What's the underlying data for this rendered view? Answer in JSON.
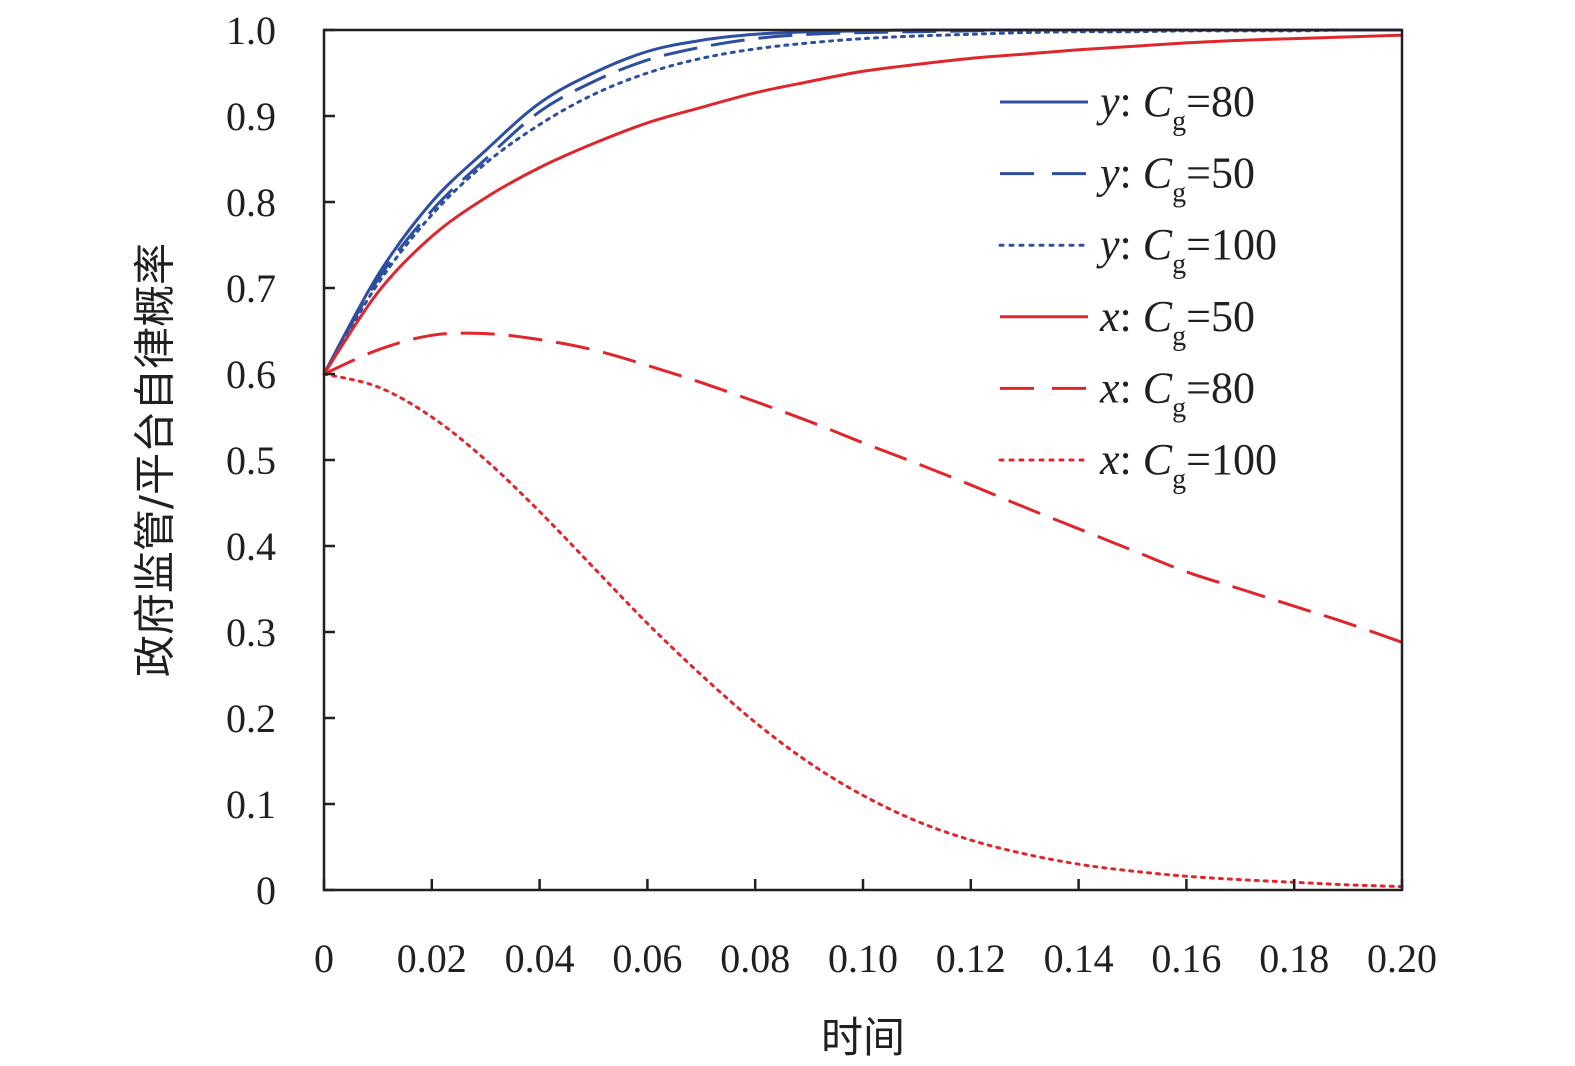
{
  "chart_data": {
    "type": "line",
    "title": "",
    "xlabel": "时间",
    "ylabel": "政府监管/平台自律概率",
    "xlim": [
      0,
      0.2
    ],
    "ylim": [
      0,
      1.0
    ],
    "x_ticks": [
      "0",
      "0.02",
      "0.04",
      "0.06",
      "0.08",
      "0.10",
      "0.12",
      "0.14",
      "0.16",
      "0.18",
      "0.20"
    ],
    "y_ticks": [
      "0",
      "0.1",
      "0.2",
      "0.3",
      "0.4",
      "0.5",
      "0.6",
      "0.7",
      "0.8",
      "0.9",
      "1.0"
    ],
    "legend_position": "top-right",
    "grid": false,
    "colors": {
      "blue": "#2e4ea0",
      "red": "#e0262d",
      "axis": "#231f20"
    },
    "x": [
      0,
      0.01,
      0.02,
      0.03,
      0.04,
      0.05,
      0.06,
      0.07,
      0.08,
      0.09,
      0.1,
      0.11,
      0.12,
      0.13,
      0.14,
      0.15,
      0.16,
      0.17,
      0.18,
      0.19,
      0.2
    ],
    "series": [
      {
        "var": "y",
        "sep": ": ",
        "sym": "C",
        "sub": "g",
        "eq": "=80",
        "color": "blue",
        "dash": "solid",
        "values": [
          0.6,
          0.715,
          0.8,
          0.86,
          0.915,
          0.95,
          0.975,
          0.988,
          0.995,
          0.998,
          0.999,
          1.0,
          1.0,
          1.0,
          1.0,
          1.0,
          1.0,
          1.0,
          1.0,
          1.0,
          1.0
        ]
      },
      {
        "var": "y",
        "sep": ": ",
        "sym": "C",
        "sub": "g",
        "eq": "=50",
        "color": "blue",
        "dash": "dashed",
        "values": [
          0.6,
          0.71,
          0.79,
          0.85,
          0.905,
          0.94,
          0.965,
          0.98,
          0.99,
          0.995,
          0.997,
          0.998,
          0.999,
          1.0,
          1.0,
          1.0,
          1.0,
          1.0,
          1.0,
          1.0,
          1.0
        ]
      },
      {
        "var": "y",
        "sep": ": ",
        "sym": "C",
        "sub": "g",
        "eq": "=100",
        "color": "blue",
        "dash": "dotted",
        "values": [
          0.6,
          0.705,
          0.785,
          0.845,
          0.89,
          0.925,
          0.95,
          0.967,
          0.978,
          0.985,
          0.99,
          0.993,
          0.995,
          0.997,
          0.998,
          0.998,
          0.999,
          0.999,
          0.999,
          1.0,
          1.0
        ]
      },
      {
        "var": "x",
        "sep": ": ",
        "sym": "C",
        "sub": "g",
        "eq": "=50",
        "color": "red",
        "dash": "solid",
        "values": [
          0.6,
          0.695,
          0.76,
          0.805,
          0.84,
          0.868,
          0.892,
          0.91,
          0.927,
          0.94,
          0.952,
          0.96,
          0.967,
          0.972,
          0.977,
          0.981,
          0.985,
          0.988,
          0.99,
          0.992,
          0.994
        ]
      },
      {
        "var": "x",
        "sep": ": ",
        "sym": "C",
        "sub": "g",
        "eq": "=80",
        "color": "red",
        "dash": "dashed",
        "values": [
          0.6,
          0.628,
          0.645,
          0.647,
          0.64,
          0.628,
          0.61,
          0.59,
          0.568,
          0.545,
          0.52,
          0.496,
          0.471,
          0.445,
          0.42,
          0.395,
          0.37,
          0.35,
          0.33,
          0.31,
          0.288
        ]
      },
      {
        "var": "x",
        "sep": ": ",
        "sym": "C",
        "sub": "g",
        "eq": "=100",
        "color": "red",
        "dash": "dotted",
        "values": [
          0.6,
          0.585,
          0.55,
          0.5,
          0.44,
          0.375,
          0.31,
          0.25,
          0.195,
          0.148,
          0.11,
          0.08,
          0.058,
          0.042,
          0.03,
          0.022,
          0.016,
          0.012,
          0.009,
          0.006,
          0.004
        ]
      }
    ]
  }
}
